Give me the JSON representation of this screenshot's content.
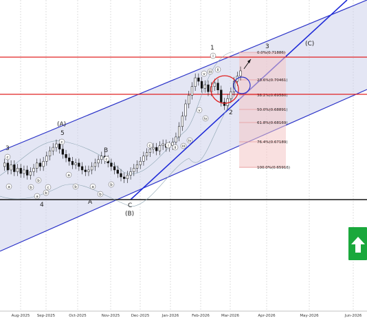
{
  "chart_data": {
    "type": "candlestick",
    "title": "",
    "x_axis": {
      "labels": [
        "Aug-2025",
        "Sep-2025",
        "Oct-2025",
        "Nov-2025",
        "Dec-2025",
        "Jan-2026",
        "Feb-2026",
        "Mar-2026",
        "Apr-2026",
        "May-2026",
        "Jun-2026"
      ]
    },
    "fibonacci_levels": [
      {
        "label": "0.0%(0.71886)",
        "value": 0.71886
      },
      {
        "label": "23.6%(0.70461)",
        "value": 0.70461
      },
      {
        "label": "38.2%(0.69580)",
        "value": 0.6958
      },
      {
        "label": "50.0%(0.68891)",
        "value": 0.68891
      },
      {
        "label": "61.8%(0.68169)",
        "value": 0.68169
      },
      {
        "label": "76.4%(0.67189)",
        "value": 0.67189
      },
      {
        "label": "100.0%(0.65916)",
        "value": 0.65916
      }
    ],
    "wave_labels": [
      "3",
      "(A)",
      "5",
      "B",
      "4",
      "A",
      "C",
      "(B)",
      "1",
      "2",
      "3",
      "(C)"
    ],
    "sub_wave_labels": [
      "c",
      "a",
      "b",
      "b",
      "c",
      "a",
      "b",
      "c",
      "a",
      "b",
      "a",
      "b",
      "c",
      "b",
      "c",
      "i",
      "ii",
      "iii",
      "iv",
      "v",
      "iv",
      "v",
      "iii",
      "ii",
      "i"
    ],
    "price_scale": {
      "min": 0.64,
      "max": 0.735
    },
    "price_series": [
      0.663,
      0.665,
      0.661,
      0.664,
      0.66,
      0.662,
      0.659,
      0.661,
      0.658,
      0.66,
      0.662,
      0.665,
      0.663,
      0.666,
      0.669,
      0.672,
      0.674,
      0.676,
      0.673,
      0.67,
      0.668,
      0.666,
      0.664,
      0.665,
      0.663,
      0.661,
      0.66,
      0.661,
      0.663,
      0.665,
      0.667,
      0.669,
      0.667,
      0.665,
      0.663,
      0.661,
      0.659,
      0.657,
      0.656,
      0.658,
      0.66,
      0.662,
      0.664,
      0.666,
      0.669,
      0.671,
      0.673,
      0.674,
      0.672,
      0.675,
      0.676,
      0.674,
      0.675,
      0.677,
      0.68,
      0.686,
      0.692,
      0.699,
      0.704,
      0.709,
      0.714,
      0.712,
      0.708,
      0.71,
      0.706,
      0.709,
      0.711,
      0.707,
      0.7,
      0.698,
      0.702,
      0.706,
      0.712,
      0.715,
      0.718
    ]
  },
  "buy_button": {
    "color": "#1aa83c",
    "icon": "arrow-up-icon"
  }
}
